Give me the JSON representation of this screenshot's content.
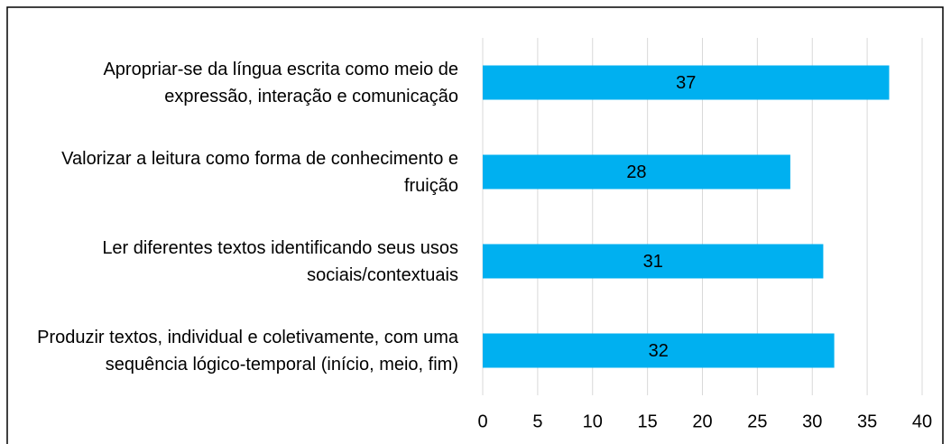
{
  "chart_data": {
    "type": "bar",
    "orientation": "horizontal",
    "categories": [
      "Apropriar-se da língua escrita como meio de expressão, interação e comunicação",
      "Valorizar a leitura como forma de conhecimento e fruição",
      "Ler diferentes textos identificando seus usos sociais/contextuais",
      "Produzir textos, individual e coletivamente, com uma sequência lógico-temporal (início, meio, fim)"
    ],
    "values": [
      37,
      28,
      31,
      32
    ],
    "color": "#00b0f0",
    "xlim": [
      0,
      40
    ],
    "xticks": [
      0,
      5,
      10,
      15,
      20,
      25,
      30,
      35,
      40
    ],
    "grid": true
  }
}
